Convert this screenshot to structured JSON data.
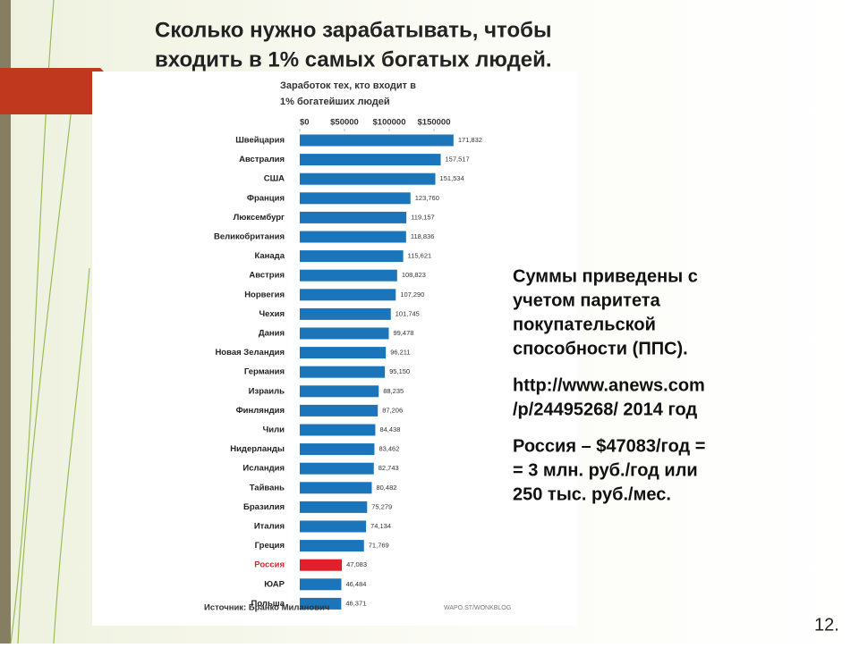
{
  "slide_title": [
    "Сколько нужно зарабатывать, чтобы",
    "входить в 1% самых богатых людей."
  ],
  "note": {
    "paragraphs": [
      [
        "Суммы приведены с",
        "учетом паритета",
        "покупательской",
        "способности (ППС)."
      ],
      [
        "http://www.anews.com",
        "/p/24495268/   2014 год"
      ],
      [
        "Россия – $47083/год =",
        "= 3 млн. руб./год или",
        "250 тыс. руб./мес."
      ]
    ]
  },
  "page_number": "12.",
  "chart_data": {
    "type": "bar",
    "orientation": "horizontal",
    "title": [
      "Заработок тех, кто входит в",
      "1% богатейших людей"
    ],
    "categories": [
      "Швейцария",
      "Австралия",
      "США",
      "Франция",
      "Люксембург",
      "Великобритания",
      "Канада",
      "Австрия",
      "Норвегия",
      "Чехия",
      "Дания",
      "Новая Зеландия",
      "Германия",
      "Израиль",
      "Финляндия",
      "Чили",
      "Нидерланды",
      "Исландия",
      "Тайвань",
      "Бразилия",
      "Италия",
      "Греция",
      "Россия",
      "ЮАР",
      "Польша"
    ],
    "values": [
      171832,
      157517,
      151534,
      123760,
      119157,
      118836,
      115621,
      108823,
      107290,
      101745,
      99478,
      96211,
      95150,
      88235,
      87206,
      84438,
      83462,
      82743,
      80482,
      75279,
      74134,
      71769,
      47083,
      46484,
      46371
    ],
    "value_labels": [
      "171,832",
      "157,517",
      "151,534",
      "123,760",
      "119,157",
      "118,836",
      "115,621",
      "108,823",
      "107,290",
      "101,745",
      "99,478",
      "96,211",
      "95,150",
      "88,235",
      "87,206",
      "84,438",
      "83,462",
      "82,743",
      "80,482",
      "75,279",
      "74,134",
      "71,769",
      "47,083",
      "46,484",
      "46,371"
    ],
    "colors": [
      "#1b75bb",
      "#1b75bb",
      "#1b75bb",
      "#1b75bb",
      "#1b75bb",
      "#1b75bb",
      "#1b75bb",
      "#1b75bb",
      "#1b75bb",
      "#1b75bb",
      "#1b75bb",
      "#1b75bb",
      "#1b75bb",
      "#1b75bb",
      "#1b75bb",
      "#1b75bb",
      "#1b75bb",
      "#1b75bb",
      "#1b75bb",
      "#1b75bb",
      "#1b75bb",
      "#1b75bb",
      "#e0202a",
      "#1b75bb",
      "#1b75bb"
    ],
    "label_colors": [
      "#222",
      "#222",
      "#222",
      "#222",
      "#222",
      "#222",
      "#222",
      "#222",
      "#222",
      "#222",
      "#222",
      "#222",
      "#222",
      "#222",
      "#222",
      "#222",
      "#222",
      "#222",
      "#222",
      "#222",
      "#222",
      "#222",
      "#e0202a",
      "#222",
      "#222"
    ],
    "xlim": [
      0,
      180000
    ],
    "xticks": [
      {
        "value": 0,
        "label": "$0"
      },
      {
        "value": 50000,
        "label": "$50000"
      },
      {
        "value": 100000,
        "label": "$100000"
      },
      {
        "value": 150000,
        "label": "$150000"
      }
    ],
    "source": "Источник: Бранко Миланович",
    "credit": "WAPO.ST/WONKBLOG"
  }
}
